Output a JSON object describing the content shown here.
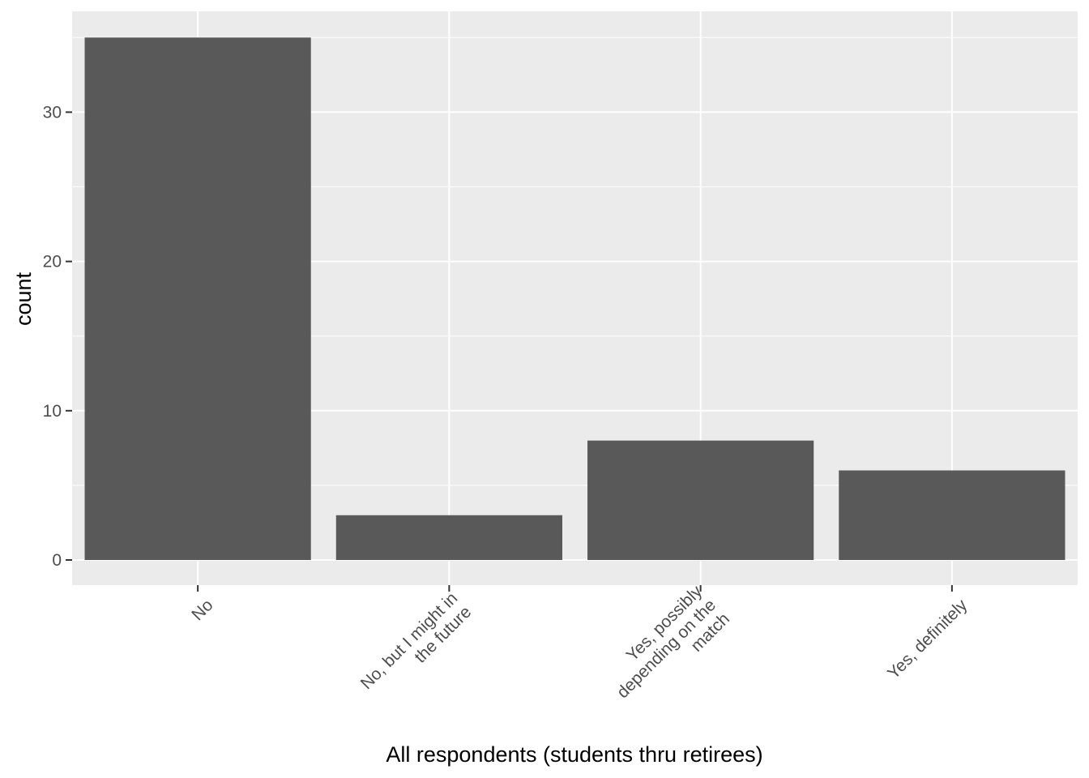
{
  "chart_data": {
    "type": "bar",
    "title": "",
    "xlabel": "All respondents (students thru retirees)",
    "ylabel": "count",
    "categories": [
      [
        "No"
      ],
      [
        "No, but I might in",
        "the future"
      ],
      [
        "Yes, possibly",
        "depending on the",
        "match"
      ],
      [
        "Yes, definitely"
      ]
    ],
    "values": [
      35,
      3,
      8,
      6
    ],
    "ylim": [
      0,
      36.75
    ],
    "yticks": [
      0,
      10,
      20,
      30
    ],
    "grid": true,
    "legend": "none",
    "colors": {
      "bar": "#595959",
      "panel": "#ebebeb",
      "grid_major": "#ffffff",
      "tick_text": "#4d4d4d",
      "axis_title": "#000000"
    }
  }
}
